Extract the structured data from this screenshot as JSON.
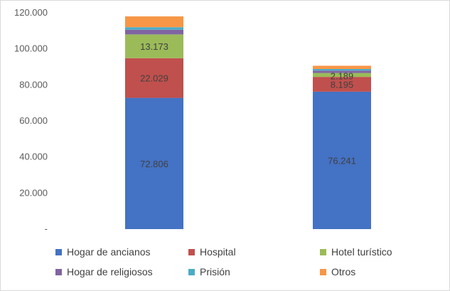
{
  "chart_data": {
    "type": "bar",
    "stacked": true,
    "title": "",
    "xlabel": "",
    "ylabel": "",
    "categories": [
      "",
      ""
    ],
    "ylim": [
      0,
      120000
    ],
    "yticks": [
      {
        "value": 0,
        "label": "-"
      },
      {
        "value": 20000,
        "label": "20.000"
      },
      {
        "value": 40000,
        "label": "40.000"
      },
      {
        "value": 60000,
        "label": "60.000"
      },
      {
        "value": 80000,
        "label": "80.000"
      },
      {
        "value": 100000,
        "label": "100.000"
      },
      {
        "value": 120000,
        "label": "120.000"
      }
    ],
    "grid": false,
    "legend_position": "bottom",
    "series": [
      {
        "name": "Hogar de ancianos",
        "color": "#4472c4",
        "values": [
          72806,
          76241
        ],
        "labels": [
          "72.806",
          "76.241"
        ]
      },
      {
        "name": "Hospital",
        "color": "#c0504d",
        "values": [
          22029,
          8195
        ],
        "labels": [
          "22.029",
          "8.195"
        ]
      },
      {
        "name": "Hotel turístico",
        "color": "#9bbb59",
        "values": [
          13173,
          2189
        ],
        "labels": [
          "13.173",
          "2.189"
        ]
      },
      {
        "name": "Hogar de religiosos",
        "color": "#8064a2",
        "values": [
          2600,
          1300
        ],
        "labels": [
          "",
          ""
        ]
      },
      {
        "name": "Prisión",
        "color": "#4bacc6",
        "values": [
          1400,
          900
        ],
        "labels": [
          "",
          ""
        ]
      },
      {
        "name": "Otros",
        "color": "#f79646",
        "values": [
          6000,
          1800
        ],
        "labels": [
          "",
          ""
        ]
      }
    ]
  }
}
